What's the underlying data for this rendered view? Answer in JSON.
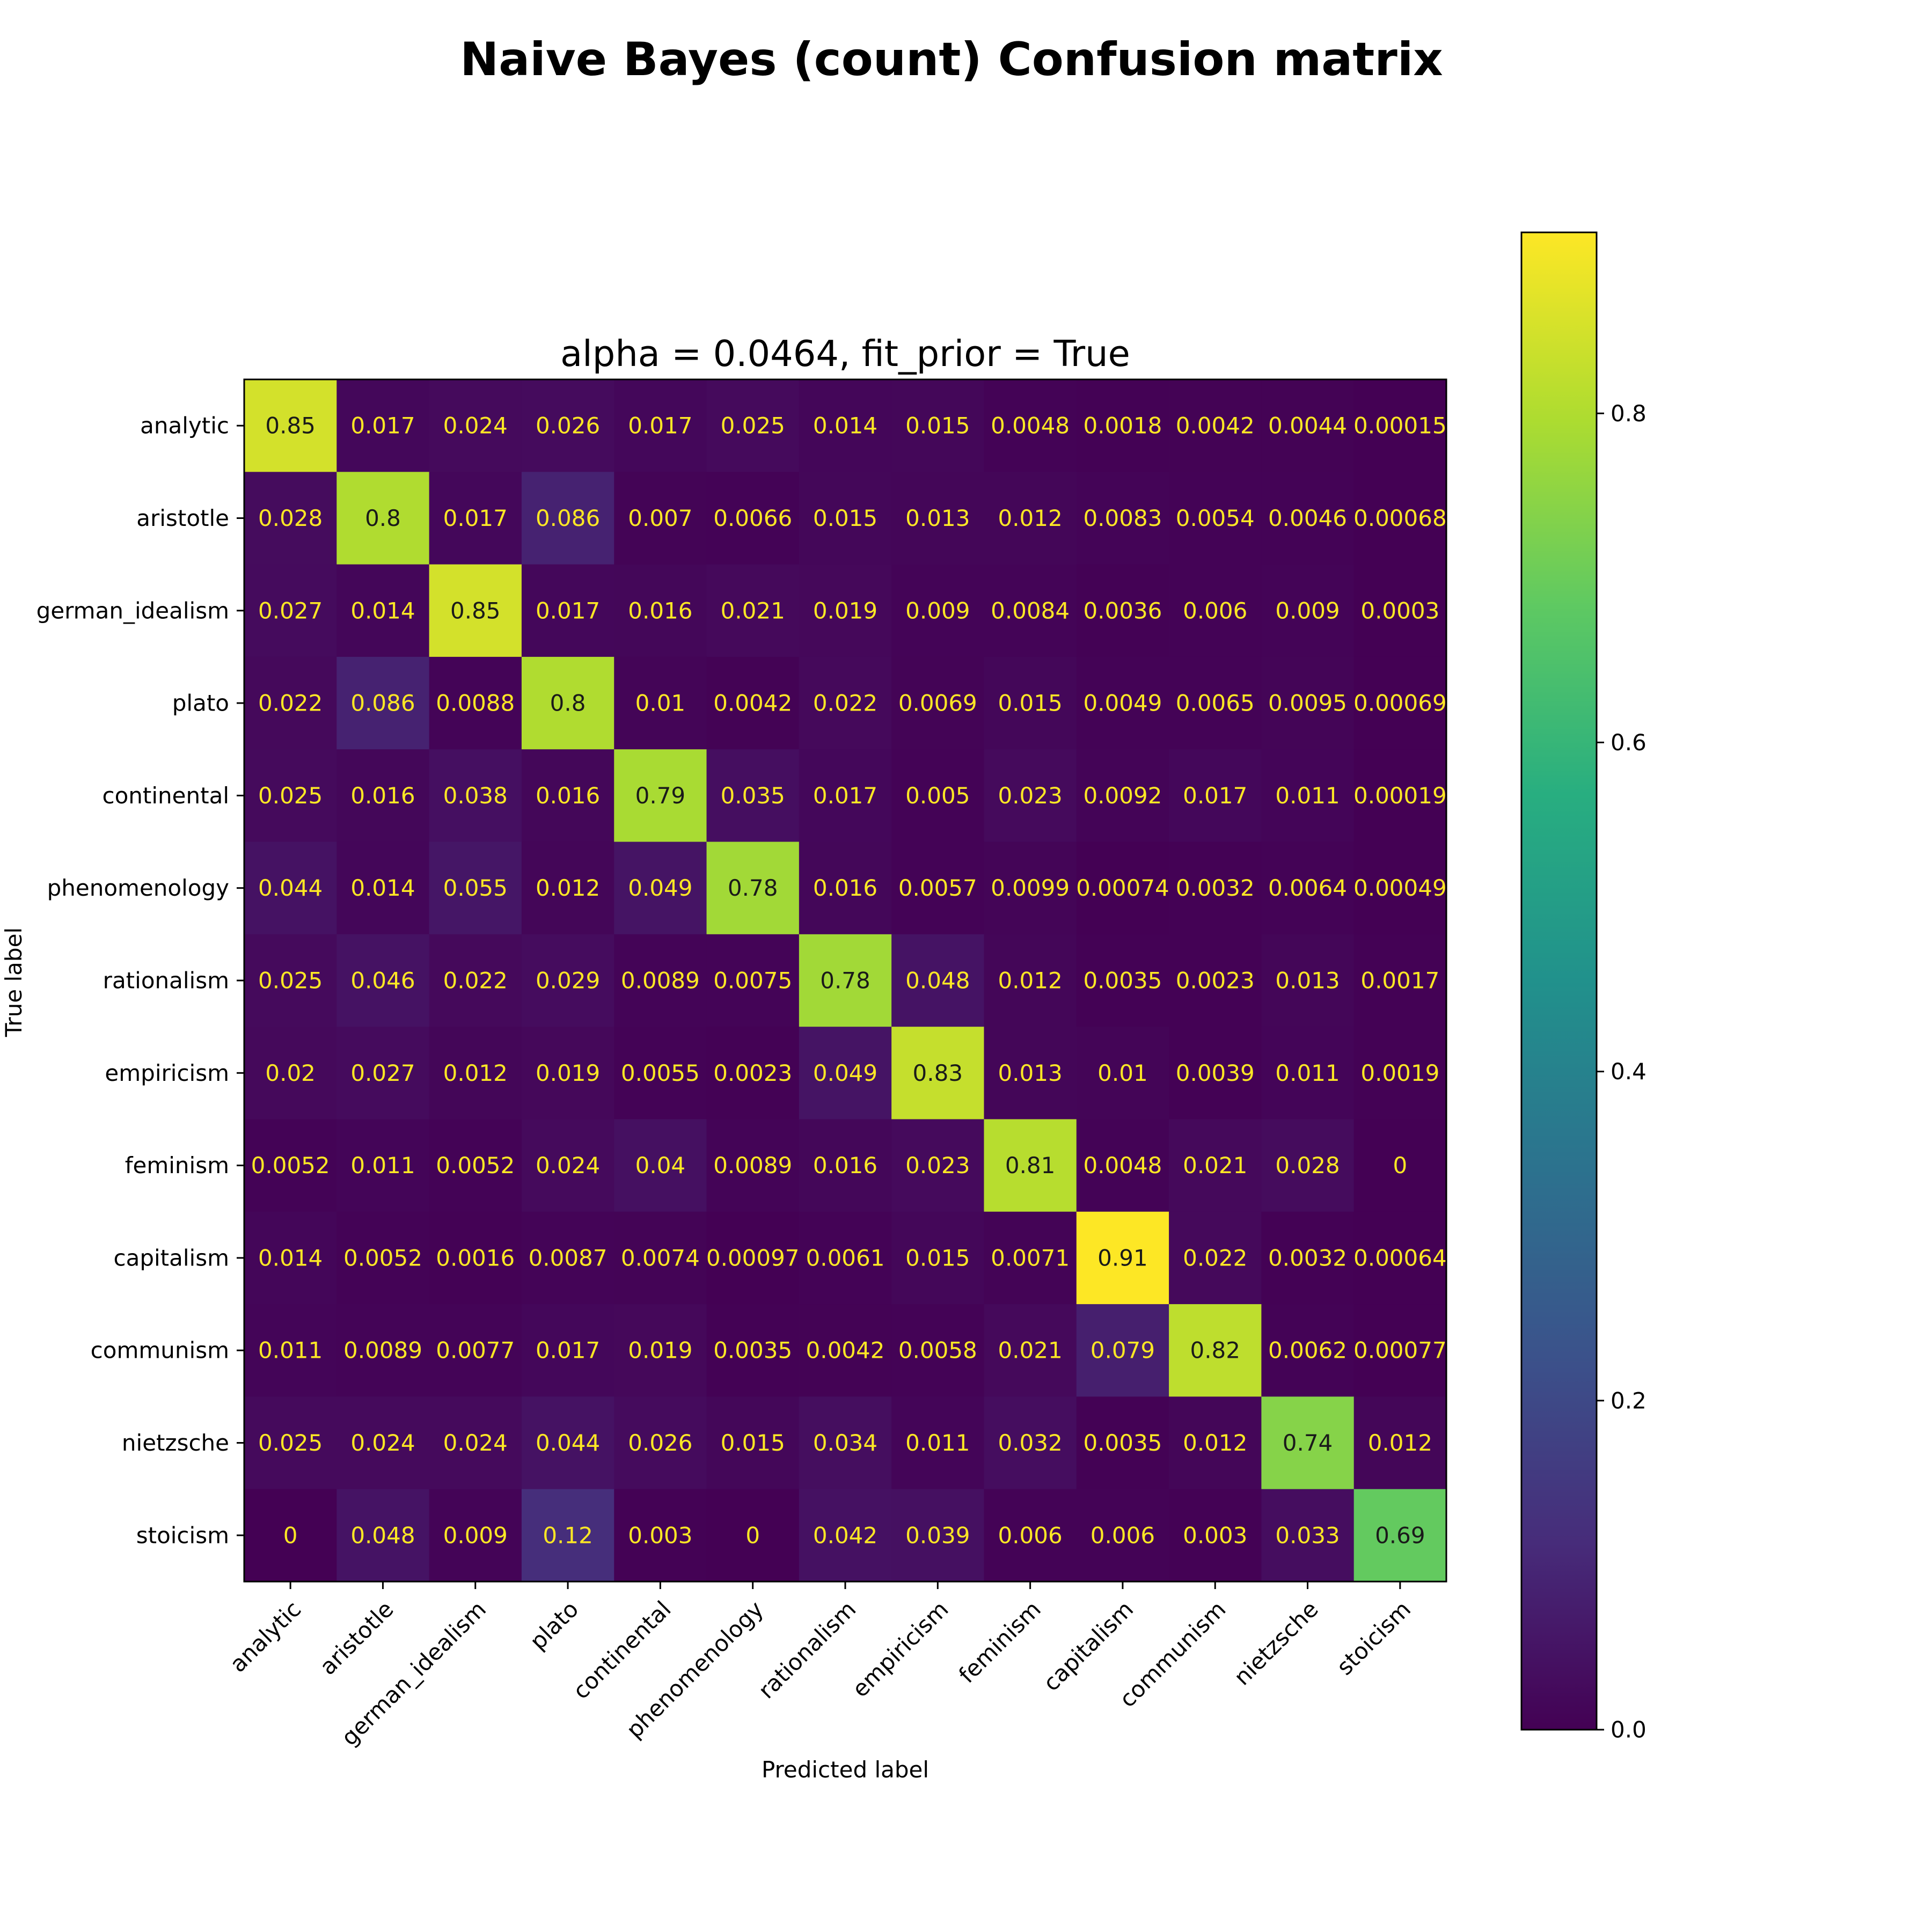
{
  "chart_data": {
    "type": "heatmap",
    "title": "Naive Bayes (count) Confusion matrix",
    "subtitle": "alpha = 0.0464, fit_prior = True",
    "xlabel": "Predicted label",
    "ylabel": "True label",
    "x_categories": [
      "analytic",
      "aristotle",
      "german_idealism",
      "plato",
      "continental",
      "phenomenology",
      "rationalism",
      "empiricism",
      "feminism",
      "capitalism",
      "communism",
      "nietzsche",
      "stoicism"
    ],
    "y_categories": [
      "analytic",
      "aristotle",
      "german_idealism",
      "plato",
      "continental",
      "phenomenology",
      "rationalism",
      "empiricism",
      "feminism",
      "capitalism",
      "communism",
      "nietzsche",
      "stoicism"
    ],
    "values": [
      [
        "0.85",
        "0.017",
        "0.024",
        "0.026",
        "0.017",
        "0.025",
        "0.014",
        "0.015",
        "0.0048",
        "0.0018",
        "0.0042",
        "0.0044",
        "0.00015"
      ],
      [
        "0.028",
        "0.8",
        "0.017",
        "0.086",
        "0.007",
        "0.0066",
        "0.015",
        "0.013",
        "0.012",
        "0.0083",
        "0.0054",
        "0.0046",
        "0.00068"
      ],
      [
        "0.027",
        "0.014",
        "0.85",
        "0.017",
        "0.016",
        "0.021",
        "0.019",
        "0.009",
        "0.0084",
        "0.0036",
        "0.006",
        "0.009",
        "0.0003"
      ],
      [
        "0.022",
        "0.086",
        "0.0088",
        "0.8",
        "0.01",
        "0.0042",
        "0.022",
        "0.0069",
        "0.015",
        "0.0049",
        "0.0065",
        "0.0095",
        "0.00069"
      ],
      [
        "0.025",
        "0.016",
        "0.038",
        "0.016",
        "0.79",
        "0.035",
        "0.017",
        "0.005",
        "0.023",
        "0.0092",
        "0.017",
        "0.011",
        "0.00019"
      ],
      [
        "0.044",
        "0.014",
        "0.055",
        "0.012",
        "0.049",
        "0.78",
        "0.016",
        "0.0057",
        "0.0099",
        "0.00074",
        "0.0032",
        "0.0064",
        "0.00049"
      ],
      [
        "0.025",
        "0.046",
        "0.022",
        "0.029",
        "0.0089",
        "0.0075",
        "0.78",
        "0.048",
        "0.012",
        "0.0035",
        "0.0023",
        "0.013",
        "0.0017"
      ],
      [
        "0.02",
        "0.027",
        "0.012",
        "0.019",
        "0.0055",
        "0.0023",
        "0.049",
        "0.83",
        "0.013",
        "0.01",
        "0.0039",
        "0.011",
        "0.0019"
      ],
      [
        "0.0052",
        "0.011",
        "0.0052",
        "0.024",
        "0.04",
        "0.0089",
        "0.016",
        "0.023",
        "0.81",
        "0.0048",
        "0.021",
        "0.028",
        "0"
      ],
      [
        "0.014",
        "0.0052",
        "0.0016",
        "0.0087",
        "0.0074",
        "0.00097",
        "0.0061",
        "0.015",
        "0.0071",
        "0.91",
        "0.022",
        "0.0032",
        "0.00064"
      ],
      [
        "0.011",
        "0.0089",
        "0.0077",
        "0.017",
        "0.019",
        "0.0035",
        "0.0042",
        "0.0058",
        "0.021",
        "0.079",
        "0.82",
        "0.0062",
        "0.00077"
      ],
      [
        "0.025",
        "0.024",
        "0.024",
        "0.044",
        "0.026",
        "0.015",
        "0.034",
        "0.011",
        "0.032",
        "0.0035",
        "0.012",
        "0.74",
        "0.012"
      ],
      [
        "0",
        "0.048",
        "0.009",
        "0.12",
        "0.003",
        "0",
        "0.042",
        "0.039",
        "0.006",
        "0.006",
        "0.003",
        "0.033",
        "0.69"
      ]
    ],
    "colormap": "viridis",
    "colorbar": {
      "range": [
        0,
        0.91
      ],
      "ticks": [
        0.0,
        0.2,
        0.4,
        0.6,
        0.8
      ],
      "tick_labels": [
        "0.0",
        "0.2",
        "0.4",
        "0.6",
        "0.8"
      ]
    },
    "text_colors": {
      "on_dark": "#fde725",
      "on_light": "#1a1a1a"
    }
  }
}
